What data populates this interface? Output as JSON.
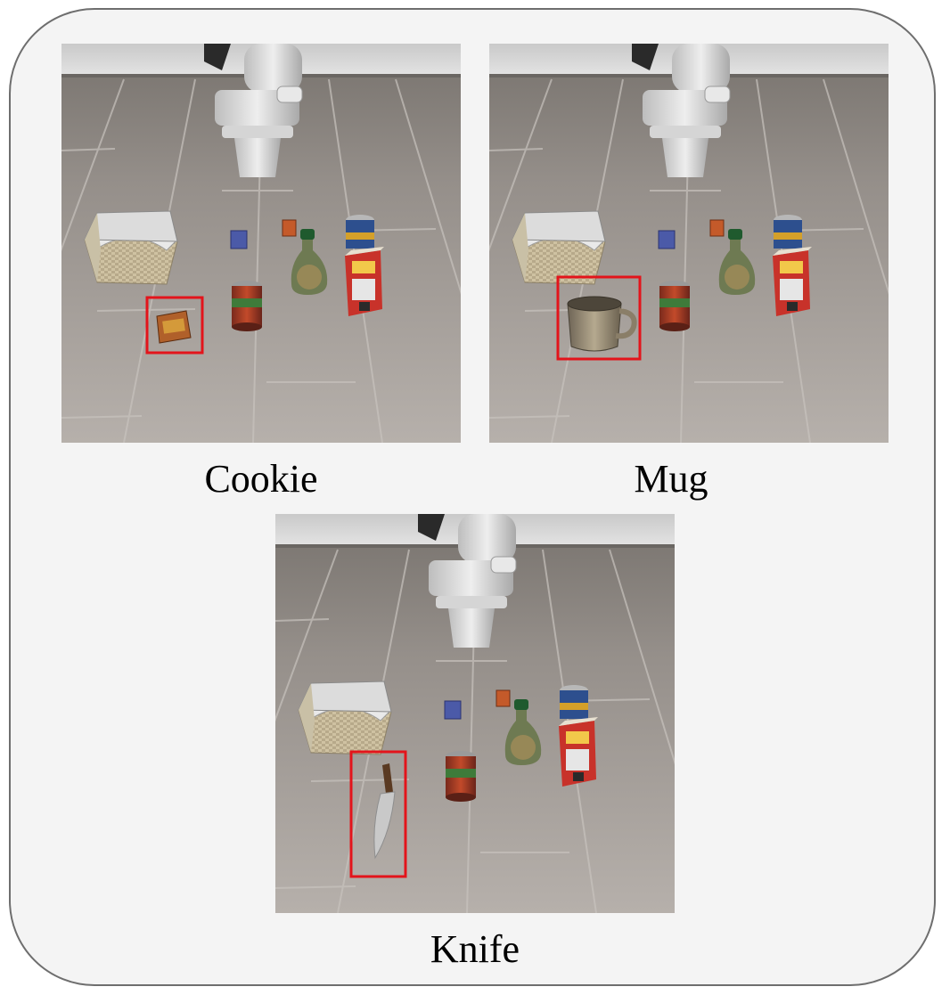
{
  "panels": [
    {
      "caption": "Cookie",
      "highlighted_object": "cookie-box"
    },
    {
      "caption": "Mug",
      "highlighted_object": "mug"
    },
    {
      "caption": "Knife",
      "highlighted_object": "knife"
    }
  ],
  "colors": {
    "frame_border": "#6e6e6e",
    "frame_fill": "#f4f4f4",
    "highlight_box": "#e3141b",
    "floor": "#a29d98",
    "wall": "#d6d6d6"
  }
}
